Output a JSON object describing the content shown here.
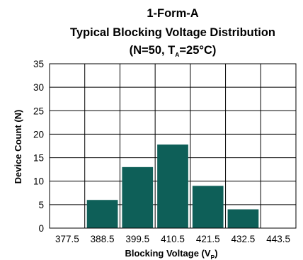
{
  "chart_data": {
    "type": "bar",
    "title_line1": "1-Form-A",
    "title_line2": "Typical Blocking Voltage Distribution",
    "title_line3": {
      "before": "(N=50, T",
      "subscript": "A",
      "after": "=25°C)"
    },
    "xlabel": {
      "main": "Blocking Voltage (V",
      "subscript": "P",
      "after": ")"
    },
    "ylabel": "Device Count (N)",
    "ylim": [
      0,
      35
    ],
    "yticks": [
      0,
      5,
      10,
      15,
      20,
      25,
      30,
      35
    ],
    "x_tick_labels": [
      "377.5",
      "388.5",
      "399.5",
      "410.5",
      "421.5",
      "432.5",
      "443.5"
    ],
    "categories": [
      "377.5",
      "388.5",
      "399.5",
      "410.5",
      "421.5",
      "432.5"
    ],
    "values": [
      0,
      6,
      13,
      17.8,
      9,
      4
    ],
    "grid": true,
    "bar_color": "#0e5f58"
  }
}
